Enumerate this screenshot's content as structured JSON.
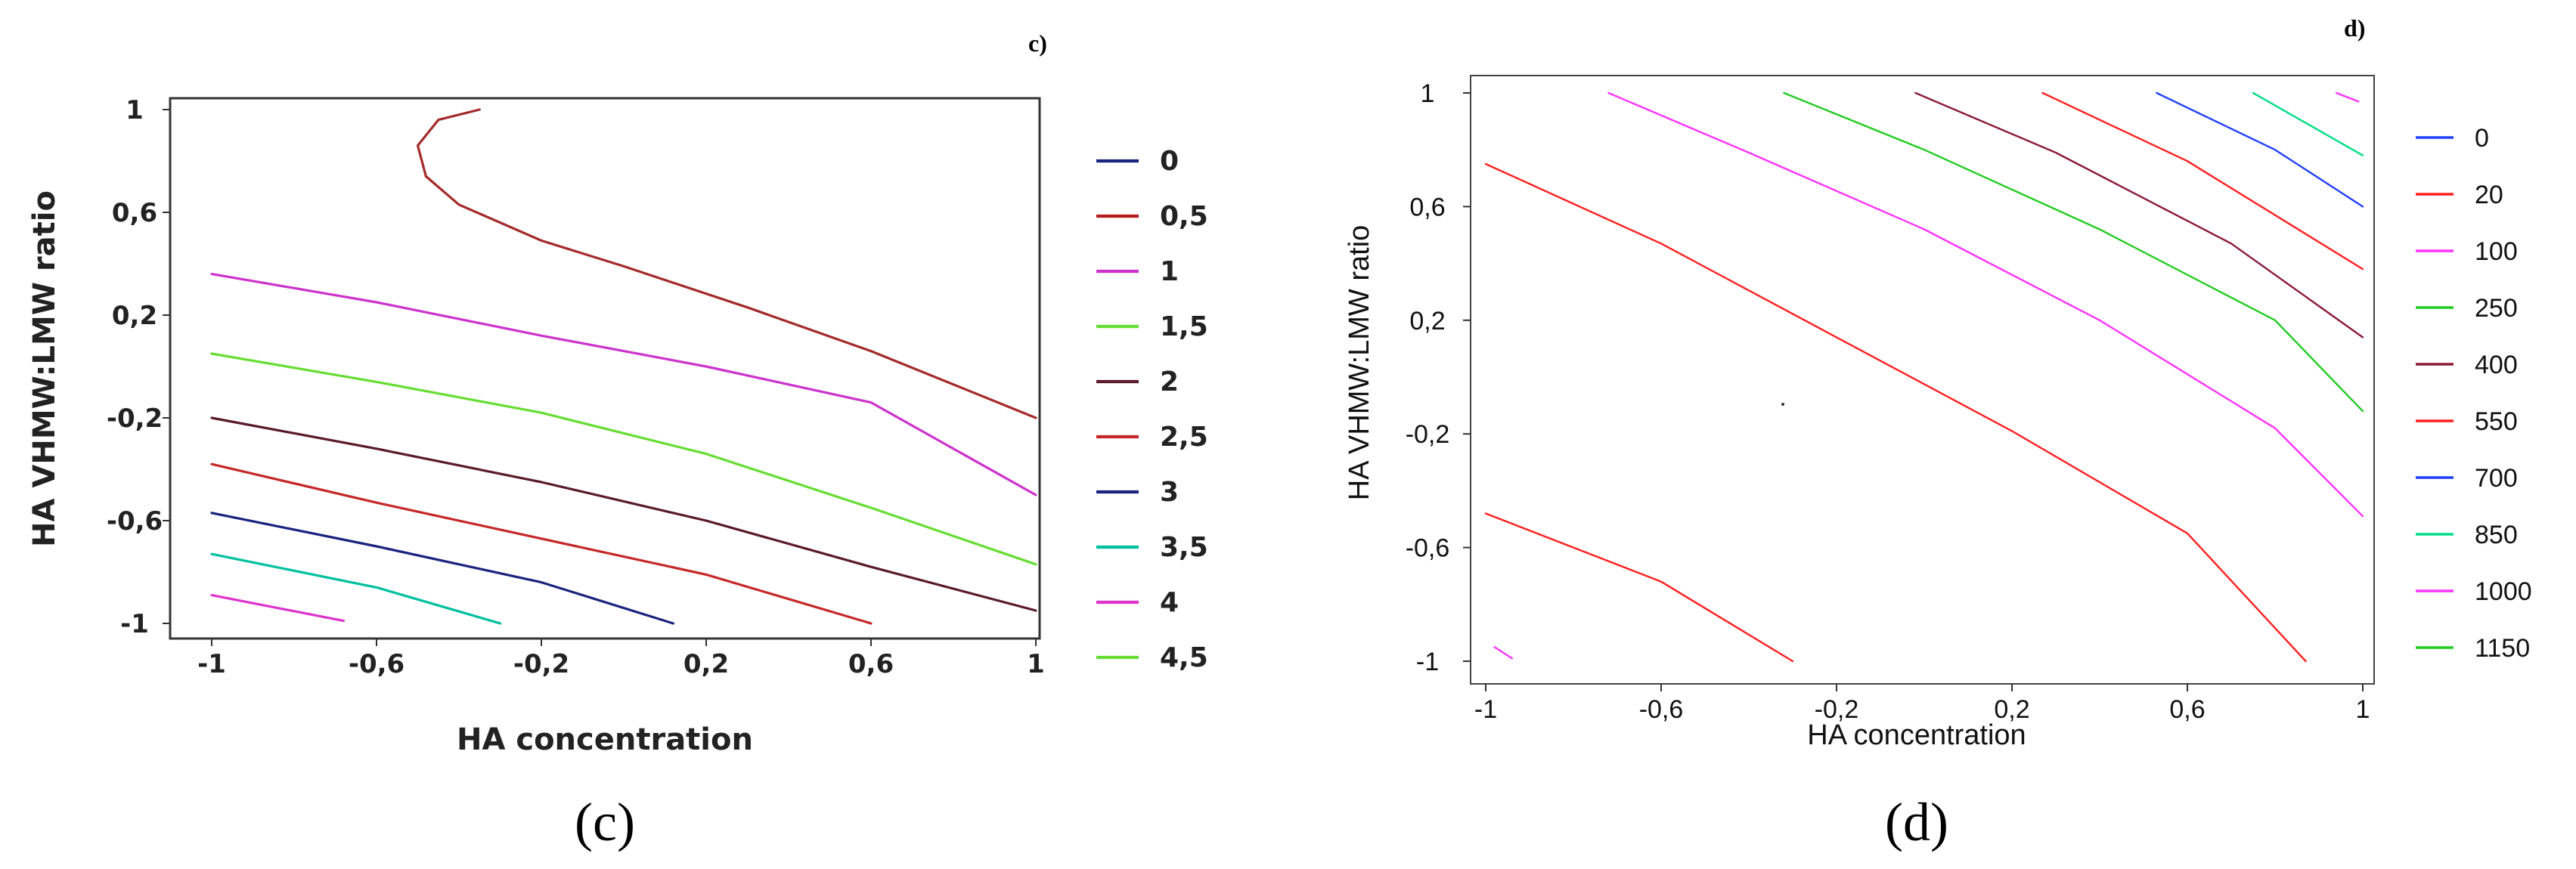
{
  "chart_data": [
    {
      "type": "contour",
      "corner_label": "c)",
      "caption": "(c)",
      "xlabel": "HA concentration",
      "ylabel": "HA VHMW:LMW ratio",
      "xlim": [
        -1,
        1
      ],
      "ylim": [
        -1,
        1
      ],
      "xticks": [
        "-1",
        "-0,6",
        "-0,2",
        "0,2",
        "0,6",
        "1"
      ],
      "yticks": [
        "1",
        "0,6",
        "0,2",
        "-0,2",
        "-0,6",
        "-1"
      ],
      "legend": [
        {
          "label": "0",
          "color": "#1a237e"
        },
        {
          "label": "0,5",
          "color": "#b71c1c"
        },
        {
          "label": "1",
          "color": "#cc33cc"
        },
        {
          "label": "1,5",
          "color": "#66dd33"
        },
        {
          "label": "2",
          "color": "#5a1a2a"
        },
        {
          "label": "2,5",
          "color": "#c62828"
        },
        {
          "label": "3",
          "color": "#1a237e"
        },
        {
          "label": "3,5",
          "color": "#00c0a0"
        },
        {
          "label": "4",
          "color": "#dd33cc"
        },
        {
          "label": "4,5",
          "color": "#66dd33"
        }
      ],
      "series": [
        {
          "name": "0,5",
          "color": "#a52a2a",
          "points": [
            [
              -0.35,
              1.0
            ],
            [
              -0.45,
              0.96
            ],
            [
              -0.5,
              0.86
            ],
            [
              -0.48,
              0.74
            ],
            [
              -0.4,
              0.63
            ],
            [
              -0.2,
              0.49
            ],
            [
              0.0,
              0.39
            ],
            [
              0.3,
              0.23
            ],
            [
              0.6,
              0.06
            ],
            [
              1.0,
              -0.2
            ]
          ]
        },
        {
          "name": "1",
          "color": "#cc33cc",
          "points": [
            [
              -1.0,
              0.36
            ],
            [
              -0.6,
              0.25
            ],
            [
              -0.2,
              0.12
            ],
            [
              0.2,
              0.0
            ],
            [
              0.6,
              -0.14
            ],
            [
              1.0,
              -0.5
            ]
          ]
        },
        {
          "name": "1,5",
          "color": "#66dd33",
          "points": [
            [
              -1.0,
              0.05
            ],
            [
              -0.6,
              -0.06
            ],
            [
              -0.2,
              -0.18
            ],
            [
              0.2,
              -0.34
            ],
            [
              0.6,
              -0.55
            ],
            [
              1.0,
              -0.77
            ]
          ]
        },
        {
          "name": "2",
          "color": "#5a1a2a",
          "points": [
            [
              -1.0,
              -0.2
            ],
            [
              -0.6,
              -0.32
            ],
            [
              -0.2,
              -0.45
            ],
            [
              0.2,
              -0.6
            ],
            [
              0.6,
              -0.78
            ],
            [
              1.0,
              -0.95
            ]
          ]
        },
        {
          "name": "2,5",
          "color": "#c62828",
          "points": [
            [
              -1.0,
              -0.38
            ],
            [
              -0.6,
              -0.53
            ],
            [
              -0.2,
              -0.67
            ],
            [
              0.2,
              -0.81
            ],
            [
              0.6,
              -1.0
            ]
          ]
        },
        {
          "name": "3",
          "color": "#1a237e",
          "points": [
            [
              -1.0,
              -0.57
            ],
            [
              -0.6,
              -0.7
            ],
            [
              -0.2,
              -0.84
            ],
            [
              0.12,
              -1.0
            ]
          ]
        },
        {
          "name": "3,5",
          "color": "#00c0a0",
          "points": [
            [
              -1.0,
              -0.73
            ],
            [
              -0.6,
              -0.86
            ],
            [
              -0.3,
              -1.0
            ]
          ]
        },
        {
          "name": "4",
          "color": "#dd33cc",
          "points": [
            [
              -1.0,
              -0.89
            ],
            [
              -0.68,
              -0.99
            ]
          ]
        }
      ]
    },
    {
      "type": "contour",
      "corner_label": "d)",
      "caption": "(d)",
      "xlabel": "HA concentration",
      "ylabel": "HA VHMW:LMW ratio",
      "xlim": [
        -1,
        1
      ],
      "ylim": [
        -1,
        1
      ],
      "xticks": [
        "-1",
        "-0,6",
        "-0,2",
        "0,2",
        "0,6",
        "1"
      ],
      "yticks": [
        "1",
        "0,6",
        "0,2",
        "-0,2",
        "-0,6",
        "-1"
      ],
      "legend": [
        {
          "label": "0",
          "color": "#2040ff"
        },
        {
          "label": "20",
          "color": "#ff2020"
        },
        {
          "label": "100",
          "color": "#ff33ff"
        },
        {
          "label": "250",
          "color": "#22cc22"
        },
        {
          "label": "400",
          "color": "#8b1a3a"
        },
        {
          "label": "550",
          "color": "#ff2020"
        },
        {
          "label": "700",
          "color": "#2040ff"
        },
        {
          "label": "850",
          "color": "#00dd88"
        },
        {
          "label": "1000",
          "color": "#ff33ff"
        },
        {
          "label": "1150",
          "color": "#22cc22"
        }
      ],
      "series": [
        {
          "name": "20",
          "color": "#ff2020",
          "points": [
            [
              -1.0,
              -0.48
            ],
            [
              -0.6,
              -0.72
            ],
            [
              -0.3,
              -1.0
            ]
          ]
        },
        {
          "name": "20",
          "color": "#ff2020",
          "points": [
            [
              -1.0,
              0.75
            ],
            [
              -0.6,
              0.47
            ],
            [
              -0.2,
              0.14
            ],
            [
              0.2,
              -0.19
            ],
            [
              0.6,
              -0.55
            ],
            [
              0.87,
              -1.0
            ]
          ]
        },
        {
          "name": "100",
          "color": "#ff33ff",
          "points": [
            [
              -0.72,
              1.0
            ],
            [
              -0.4,
              0.79
            ],
            [
              0.0,
              0.52
            ],
            [
              0.4,
              0.2
            ],
            [
              0.8,
              -0.18
            ],
            [
              1.0,
              -0.49
            ]
          ]
        },
        {
          "name": "250",
          "color": "#22cc22",
          "points": [
            [
              -0.32,
              1.0
            ],
            [
              0.0,
              0.8
            ],
            [
              0.4,
              0.52
            ],
            [
              0.8,
              0.2
            ],
            [
              1.0,
              -0.12
            ]
          ]
        },
        {
          "name": "400",
          "color": "#8b1a3a",
          "points": [
            [
              -0.02,
              1.0
            ],
            [
              0.3,
              0.79
            ],
            [
              0.7,
              0.47
            ],
            [
              1.0,
              0.14
            ]
          ]
        },
        {
          "name": "550",
          "color": "#ff2020",
          "points": [
            [
              0.27,
              1.0
            ],
            [
              0.6,
              0.76
            ],
            [
              1.0,
              0.38
            ]
          ]
        },
        {
          "name": "700",
          "color": "#2040ff",
          "points": [
            [
              0.53,
              1.0
            ],
            [
              0.8,
              0.8
            ],
            [
              1.0,
              0.6
            ]
          ]
        },
        {
          "name": "850",
          "color": "#00dd88",
          "points": [
            [
              0.75,
              1.0
            ],
            [
              1.0,
              0.78
            ]
          ]
        },
        {
          "name": "1000",
          "color": "#ff33ff",
          "points": [
            [
              0.94,
              1.0
            ],
            [
              0.99,
              0.97
            ]
          ]
        },
        {
          "name": "",
          "color": "#ff33ff",
          "points": [
            [
              -0.98,
              -0.95
            ],
            [
              -0.94,
              -0.99
            ]
          ]
        }
      ]
    }
  ]
}
